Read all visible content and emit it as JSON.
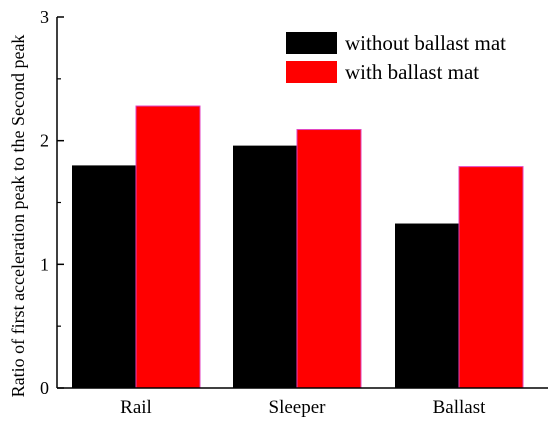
{
  "chart_data": {
    "type": "bar",
    "categories": [
      "Rail",
      "Sleeper",
      "Ballast"
    ],
    "series": [
      {
        "name": "without ballast mat",
        "values": [
          1.8,
          1.96,
          1.33
        ],
        "color": "#000000"
      },
      {
        "name": "with ballast mat",
        "values": [
          2.28,
          2.09,
          1.79
        ],
        "color": "#ff0000"
      }
    ],
    "xlabel": "",
    "ylabel": "Ratio of first acceleration peak to the Second peak",
    "ylim": [
      0,
      3
    ],
    "yticks": [
      "0",
      "1",
      "2",
      "3"
    ],
    "grid": false,
    "legend_position": "top-right"
  }
}
